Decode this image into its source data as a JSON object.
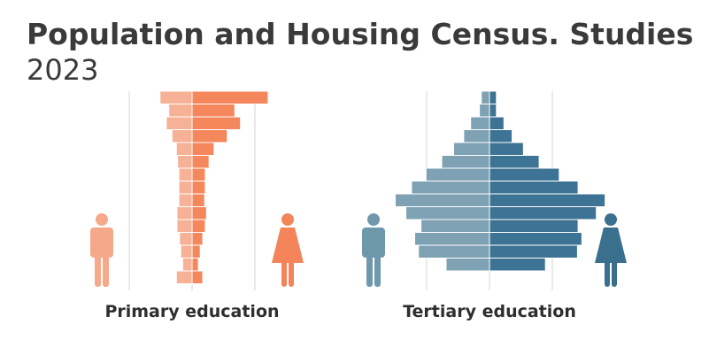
{
  "title": "Population and Housing Census. Studies",
  "subtitle": "2023",
  "chart_data": [
    {
      "type": "pyramid",
      "label": "Primary education",
      "categories": [
        null,
        null,
        null,
        null,
        null,
        null,
        null,
        null,
        null,
        null,
        null,
        null,
        null,
        null,
        null
      ],
      "series": [
        {
          "color": "#f6b196",
          "icon_color": "#f5a88a",
          "icon": "male",
          "values": [
            5.1,
            3.7,
            4.1,
            3.2,
            2.5,
            2.3,
            2.1,
            2.1,
            2.1,
            2.4,
            2.4,
            2.0,
            1.8,
            1.5,
            2.5
          ]
        },
        {
          "color": "#f5875c",
          "icon_color": "#f4845a",
          "icon": "female",
          "values": [
            12.1,
            6.8,
            7.7,
            5.6,
            3.5,
            2.7,
            2.1,
            2.1,
            2.0,
            2.3,
            2.1,
            1.7,
            1.3,
            1.0,
            1.7
          ]
        }
      ],
      "xlim": [
        -20,
        20
      ],
      "xticks": [
        -10,
        0,
        10
      ],
      "grid": true
    },
    {
      "type": "pyramid",
      "label": "Tertiary education",
      "categories": [
        null,
        null,
        null,
        null,
        null,
        null,
        null,
        null,
        null,
        null,
        null,
        null,
        null,
        null
      ],
      "series": [
        {
          "color": "#7ea1b4",
          "icon_color": "#6f98ad",
          "icon": "male",
          "values": [
            1.3,
            1.6,
            3.0,
            4.1,
            5.7,
            7.6,
            10.1,
            12.4,
            15.0,
            13.3,
            10.9,
            11.9,
            11.3,
            6.9
          ]
        },
        {
          "color": "#3d7394",
          "icon_color": "#3a6f8e",
          "icon": "female",
          "values": [
            1.1,
            1.1,
            2.3,
            3.6,
            5.4,
            7.9,
            11.1,
            14.1,
            18.4,
            17.0,
            14.1,
            14.7,
            14.0,
            8.9
          ]
        }
      ],
      "xlim": [
        -20,
        20
      ],
      "xticks": [
        -10,
        0,
        10
      ],
      "grid": true
    }
  ]
}
